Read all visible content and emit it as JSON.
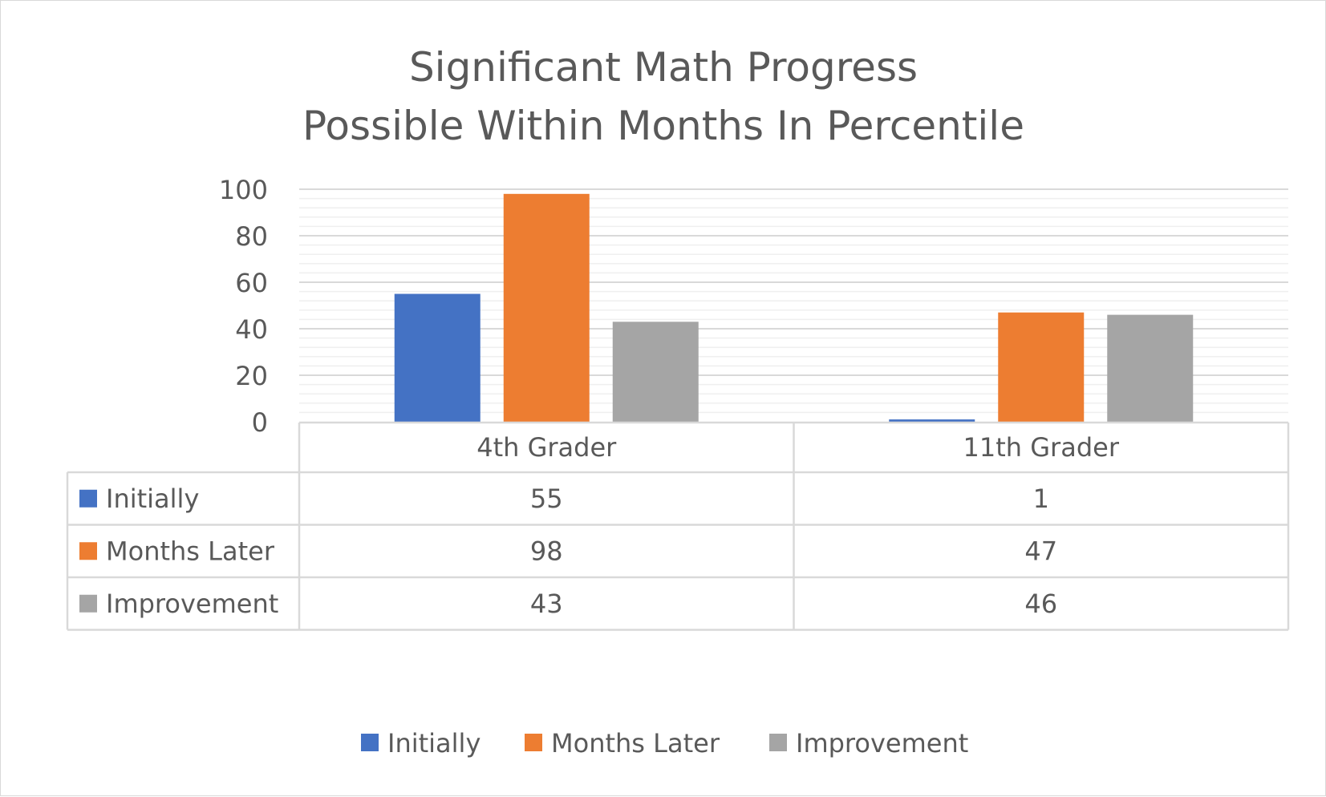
{
  "chart_data": {
    "type": "bar",
    "title_lines": [
      "Significant Math Progress",
      "Possible Within Months In Percentile"
    ],
    "categories": [
      "4th Grader",
      "11th Grader"
    ],
    "series": [
      {
        "name": "Initially",
        "values": [
          55,
          1
        ],
        "color": "#4472c4"
      },
      {
        "name": "Months Later",
        "values": [
          98,
          47
        ],
        "color": "#ed7d31"
      },
      {
        "name": "Improvement",
        "values": [
          43,
          46
        ],
        "color": "#a5a5a5"
      }
    ],
    "yticks": [
      "0",
      "20",
      "40",
      "60",
      "80",
      "100"
    ],
    "ylim": [
      0,
      100
    ],
    "major_step": 20,
    "minor_step": 4,
    "grid": true,
    "data_table": true,
    "legend_position": "bottom",
    "colors": {
      "text": "#595959",
      "grid_major": "#d9d9d9",
      "grid_minor": "#efefef",
      "table_border": "#d9d9d9"
    }
  }
}
